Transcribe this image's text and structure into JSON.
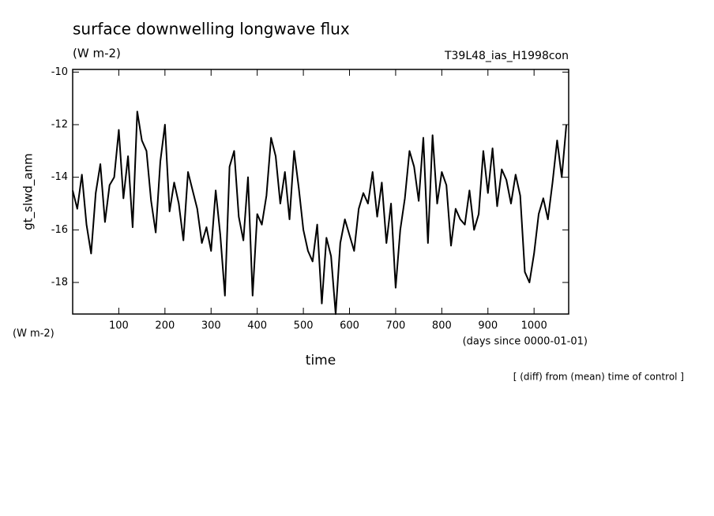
{
  "chart_data": {
    "type": "line",
    "title": "surface downwelling longwave flux",
    "units": "(W m-2)",
    "run_name": "T39L48_ias_H1998con",
    "y_label": "gt_slwd_anm",
    "y_units": "(W m-2)",
    "x_label": "time",
    "x_units": "(days since 0000-01-01)",
    "footer": "[ (diff) from (mean) time of control ]",
    "x": [
      0,
      10,
      20,
      30,
      40,
      50,
      60,
      70,
      80,
      90,
      100,
      110,
      120,
      130,
      140,
      150,
      160,
      170,
      180,
      190,
      200,
      210,
      220,
      230,
      240,
      250,
      260,
      270,
      280,
      290,
      300,
      310,
      320,
      330,
      340,
      350,
      360,
      370,
      380,
      390,
      400,
      410,
      420,
      430,
      440,
      450,
      460,
      470,
      480,
      490,
      500,
      510,
      520,
      530,
      540,
      550,
      560,
      570,
      580,
      590,
      600,
      610,
      620,
      630,
      640,
      650,
      660,
      670,
      680,
      690,
      700,
      710,
      720,
      730,
      740,
      750,
      760,
      770,
      780,
      790,
      800,
      810,
      820,
      830,
      840,
      850,
      860,
      870,
      880,
      890,
      900,
      910,
      920,
      930,
      940,
      950,
      960,
      970,
      980,
      990,
      1000,
      1010,
      1020,
      1030,
      1040,
      1050,
      1060,
      1070
    ],
    "series": [
      {
        "color": "#000000",
        "values": [
          -14.5,
          -15.2,
          -13.9,
          -15.8,
          -16.9,
          -14.6,
          -13.5,
          -15.7,
          -14.3,
          -14.0,
          -12.2,
          -14.8,
          -13.2,
          -15.9,
          -11.5,
          -12.6,
          -13.0,
          -14.9,
          -16.1,
          -13.4,
          -12.0,
          -15.3,
          -14.2,
          -15.0,
          -16.4,
          -13.8,
          -14.5,
          -15.2,
          -16.5,
          -15.9,
          -16.8,
          -14.5,
          -16.2,
          -18.5,
          -13.6,
          -13.0,
          -15.5,
          -16.4,
          -14.0,
          -18.5,
          -15.4,
          -15.8,
          -14.7,
          -12.5,
          -13.2,
          -15.0,
          -13.8,
          -15.6,
          -13.0,
          -14.4,
          -16.0,
          -16.8,
          -17.2,
          -15.8,
          -18.8,
          -16.3,
          -17.0,
          -19.2,
          -16.5,
          -15.6,
          -16.2,
          -16.8,
          -15.2,
          -14.6,
          -15.0,
          -13.8,
          -15.5,
          -14.2,
          -16.5,
          -15.0,
          -18.2,
          -16.0,
          -14.8,
          -13.0,
          -13.6,
          -14.9,
          -12.5,
          -16.5,
          -12.4,
          -15.0,
          -13.8,
          -14.3,
          -16.6,
          -15.2,
          -15.6,
          -15.8,
          -14.5,
          -16.0,
          -15.4,
          -13.0,
          -14.6,
          -12.9,
          -15.1,
          -13.7,
          -14.1,
          -15.0,
          -13.9,
          -14.7,
          -17.6,
          -18.0,
          -16.9,
          -15.4,
          -14.8,
          -15.6,
          -14.2,
          -12.6,
          -14.0,
          -12.0
        ]
      }
    ],
    "xlim": [
      0,
      1075
    ],
    "ylim": [
      -19.2,
      -9.9
    ],
    "xticks": [
      100,
      200,
      300,
      400,
      500,
      600,
      700,
      800,
      900,
      1000
    ],
    "yticks": [
      -10,
      -12,
      -14,
      -16,
      -18
    ]
  }
}
